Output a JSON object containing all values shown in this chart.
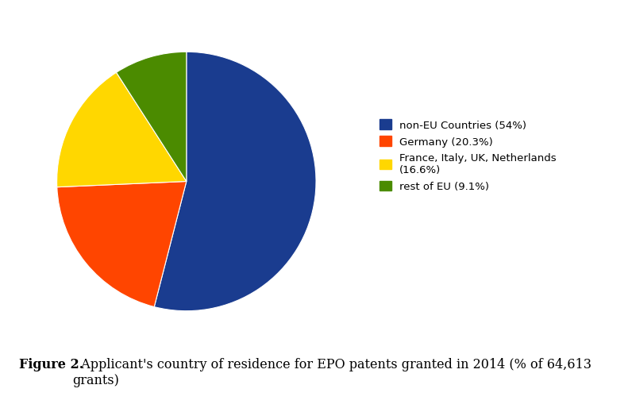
{
  "slices": [
    54.0,
    20.3,
    16.6,
    9.1
  ],
  "colors": [
    "#1A3C8F",
    "#FF4500",
    "#FFD700",
    "#4B8B00"
  ],
  "labels": [
    "non-EU Countries (54%)",
    "Germany (20.3%)",
    "France, Italy, UK, Netherlands\n(16.6%)",
    "rest of EU (9.1%)"
  ],
  "startangle": 90,
  "bg_color": "#FFFFFF",
  "legend_fontsize": 9.5,
  "caption_bold": "Figure 2.",
  "caption_normal": "  Applicant's country of residence for EPO patents granted in 2014 (% of 64,613\ngrants)",
  "caption_fontsize": 11.5
}
